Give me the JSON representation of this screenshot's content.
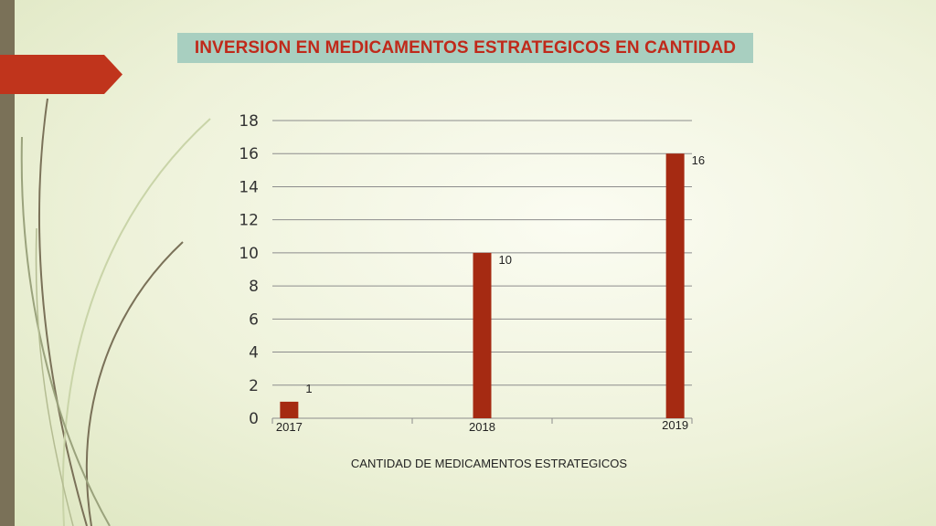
{
  "slide": {
    "accent_color": "#c0291a",
    "band_color": "#a8cfc0",
    "bar_color": "#a52a12"
  },
  "chart_data": {
    "type": "bar",
    "title": "INVERSION EN MEDICAMENTOS ESTRATEGICOS EN CANTIDAD",
    "xlabel": "CANTIDAD DE MEDICAMENTOS ESTRATEGICOS",
    "ylabel": "",
    "categories": [
      "2017",
      "2018",
      "2019"
    ],
    "values": [
      1,
      10,
      16
    ],
    "data_labels": [
      "1",
      "10",
      "16"
    ],
    "ylim": [
      0,
      18
    ],
    "yticks": [
      "0",
      "2",
      "4",
      "6",
      "8",
      "10",
      "12",
      "14",
      "16",
      "18"
    ],
    "grid": true,
    "legend": "none"
  }
}
